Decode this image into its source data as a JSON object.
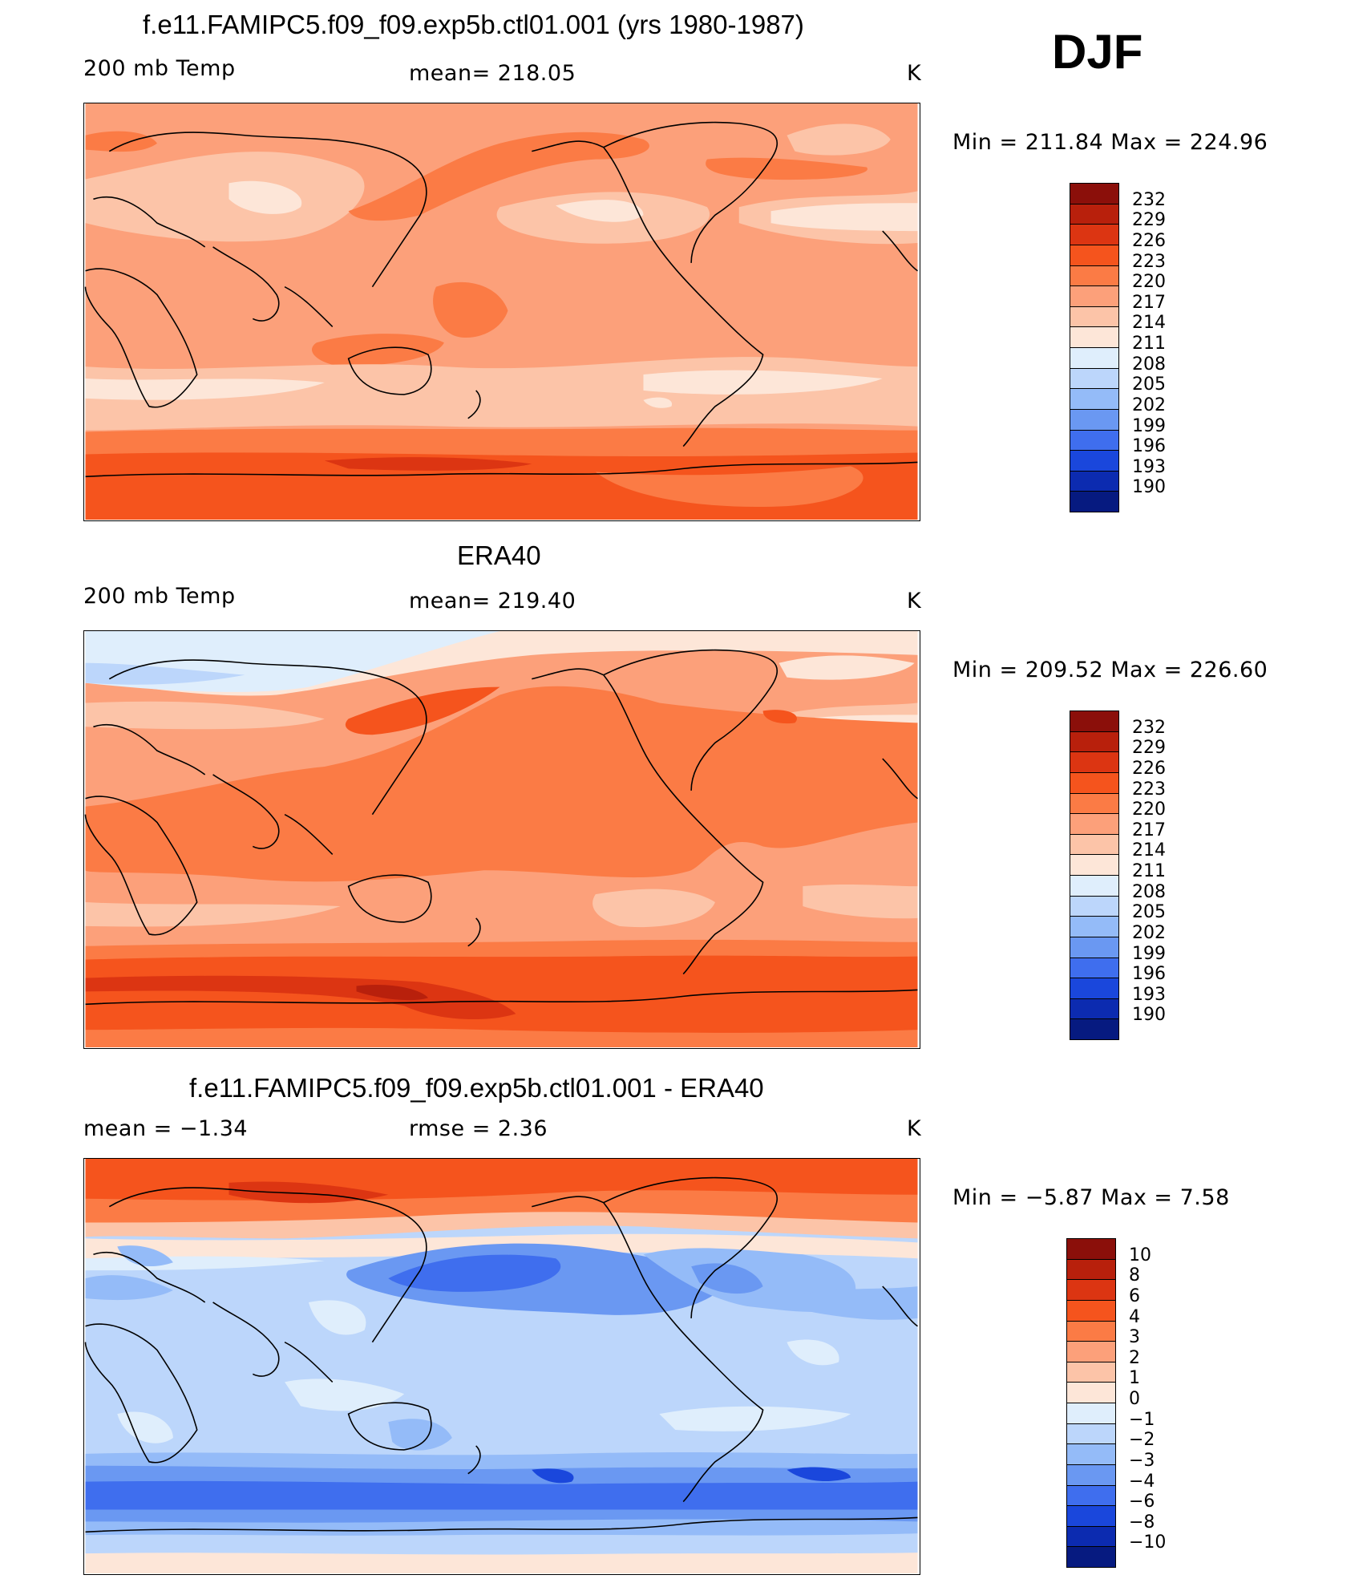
{
  "season": "DJF",
  "panels": [
    {
      "title": "f.e11.FAMIPC5.f09_f09.exp5b.ctl01.001 (yrs 1980-1987)",
      "left_label": "200 mb Temp",
      "center_label": "mean=  218.05",
      "unit": "K",
      "minmax": "Min  =  211.84  Max  =  224.96"
    },
    {
      "title": "ERA40",
      "left_label": "200 mb Temp",
      "center_label": "mean=  219.40",
      "unit": "K",
      "minmax": "Min  =  209.52  Max  =  226.60"
    },
    {
      "title": "f.e11.FAMIPC5.f09_f09.exp5b.ctl01.001 - ERA40",
      "left_label": "mean  =     −1.34",
      "center_label": "rmse  =      2.36",
      "unit": "K",
      "minmax": "Min  =     −5.87  Max  =       7.58"
    }
  ],
  "colorbar_abs": {
    "labels": [
      "232",
      "229",
      "226",
      "223",
      "220",
      "217",
      "214",
      "211",
      "208",
      "205",
      "202",
      "199",
      "196",
      "193",
      "190"
    ],
    "colors": [
      "#8b0f0a",
      "#b8200c",
      "#dc3512",
      "#f5541d",
      "#fb7b45",
      "#fca07a",
      "#fcc4a8",
      "#fde6d8",
      "#dfeefc",
      "#bcd6fb",
      "#94bbf8",
      "#6a98f2",
      "#3f6eee",
      "#1a47dc",
      "#0c2bb0",
      "#061a80"
    ]
  },
  "colorbar_diff": {
    "labels": [
      "10",
      "8",
      "6",
      "4",
      "3",
      "2",
      "1",
      "0",
      "−1",
      "−2",
      "−3",
      "−4",
      "−6",
      "−8",
      "−10"
    ],
    "colors": [
      "#8b0f0a",
      "#b8200c",
      "#dc3512",
      "#f5541d",
      "#fb7b45",
      "#fca07a",
      "#fcc4a8",
      "#fde6d8",
      "#dfeefc",
      "#bcd6fb",
      "#94bbf8",
      "#6a98f2",
      "#3f6eee",
      "#1a47dc",
      "#0c2bb0",
      "#061a80"
    ]
  }
}
